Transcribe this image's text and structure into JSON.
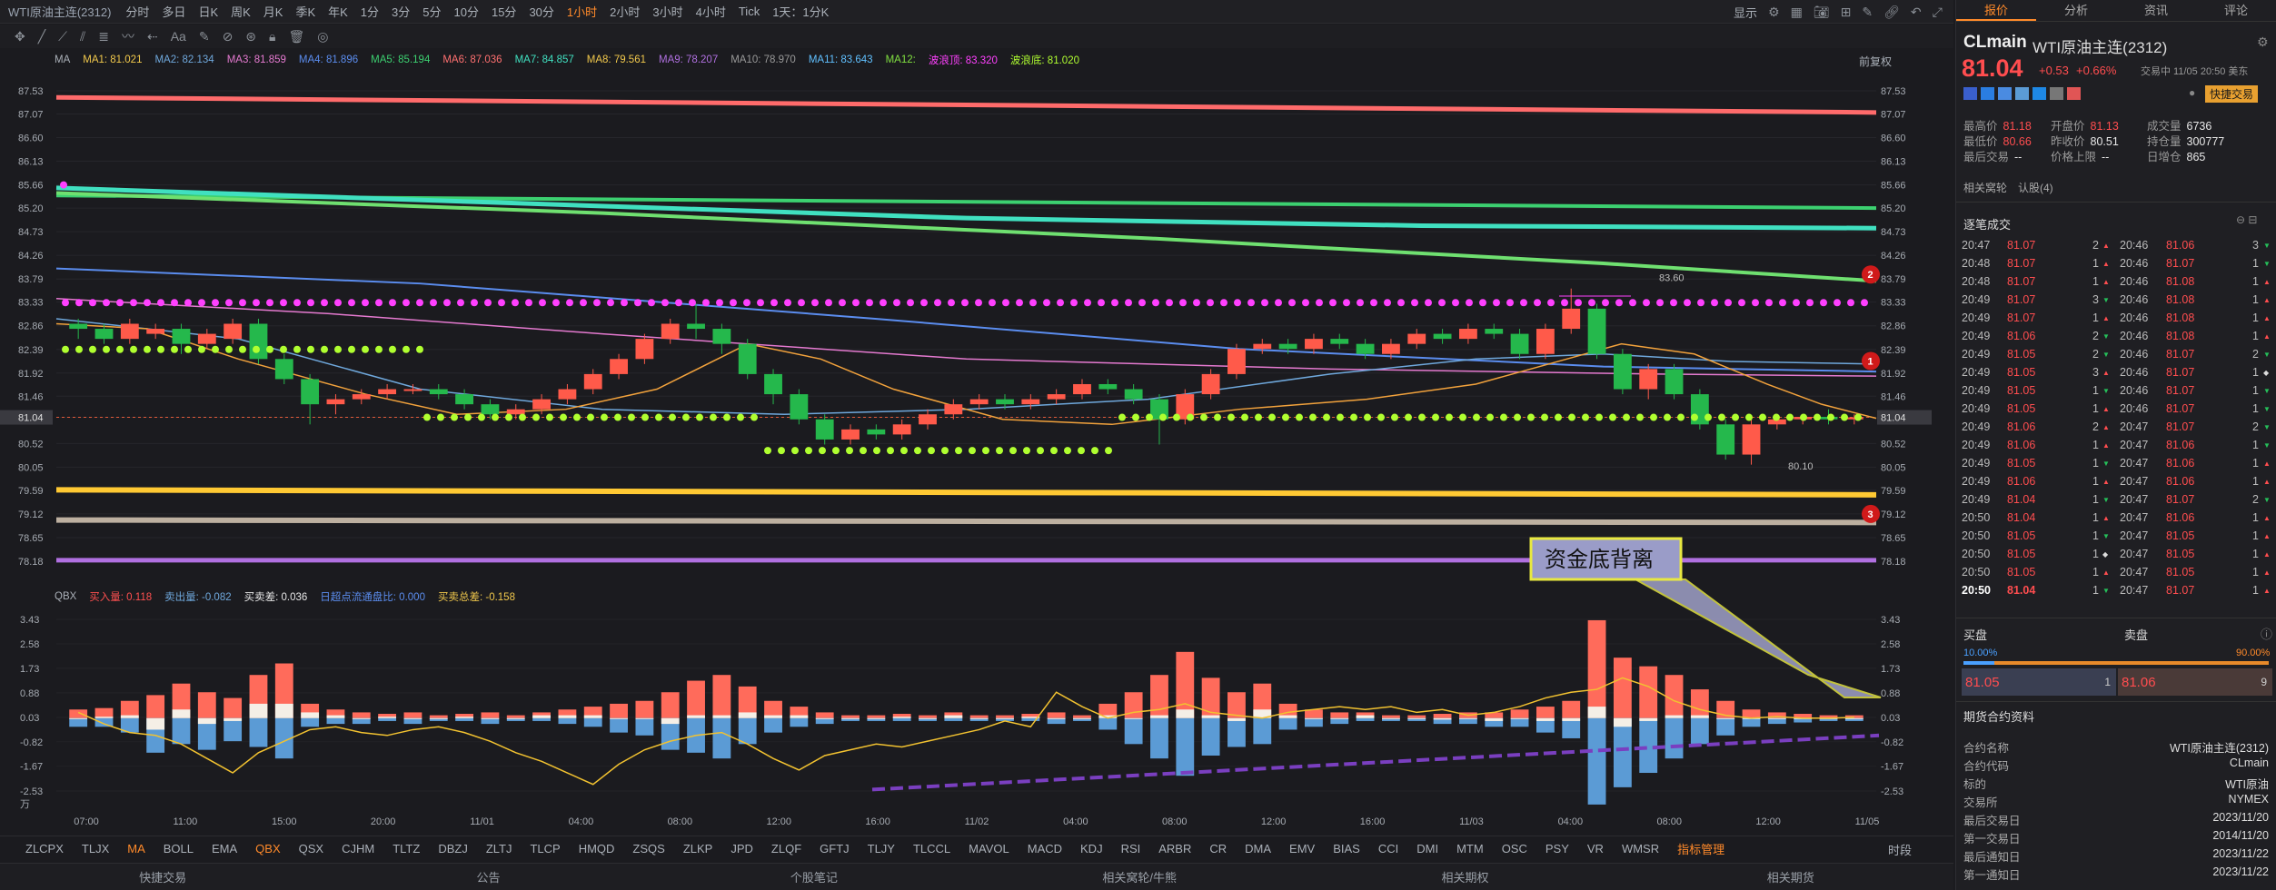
{
  "topbar": {
    "title": "WTI原油主连(2312)",
    "periods": [
      "分时",
      "多日",
      "日K",
      "周K",
      "月K",
      "季K",
      "年K",
      "1分",
      "3分",
      "5分",
      "10分",
      "15分",
      "30分",
      "1小时",
      "2小时",
      "3小时",
      "4小时",
      "Tick",
      "1天：1分K"
    ],
    "active_period": "1小时",
    "right": "显示"
  },
  "ma_legend": {
    "label": "MA",
    "items": [
      {
        "k": "MA1",
        "v": "81.021",
        "c": "#f2c94c"
      },
      {
        "k": "MA2",
        "v": "82.134",
        "c": "#6fa8dc"
      },
      {
        "k": "MA3",
        "v": "81.859",
        "c": "#e57ad0"
      },
      {
        "k": "MA4",
        "v": "81.896",
        "c": "#5b8def"
      },
      {
        "k": "MA5",
        "v": "85.194",
        "c": "#3cd070"
      },
      {
        "k": "MA6",
        "v": "87.036",
        "c": "#ff7070"
      },
      {
        "k": "MA7",
        "v": "84.857",
        "c": "#40e0c0"
      },
      {
        "k": "MA8",
        "v": "79.561",
        "c": "#f2c94c"
      },
      {
        "k": "MA9",
        "v": "78.207",
        "c": "#b070e0"
      },
      {
        "k": "MA10",
        "v": "78.970",
        "c": "#999999"
      },
      {
        "k": "MA11",
        "v": "83.643",
        "c": "#60c0ff"
      },
      {
        "k": "MA12",
        "v": "",
        "c": "#80e040"
      },
      {
        "k": "波浪顶",
        "v": "83.320",
        "c": "#ff40ff"
      },
      {
        "k": "波浪底",
        "v": "81.020",
        "c": "#b0ff30"
      }
    ],
    "right": "前复权"
  },
  "price_axis": [
    "87.53",
    "87.07",
    "86.60",
    "86.13",
    "85.66",
    "85.20",
    "84.73",
    "84.26",
    "83.79",
    "83.33",
    "82.86",
    "82.39",
    "81.92",
    "81.46",
    "81.04",
    "80.52",
    "80.05",
    "79.59",
    "79.12",
    "78.65",
    "78.18"
  ],
  "price_tag": "81.04",
  "annotations": {
    "high": "83.60",
    "low": "80.10",
    "callout": "资金底背离",
    "m1": "1",
    "m2": "2",
    "m3": "3"
  },
  "qbx_legend": {
    "label": "QBX",
    "items": [
      {
        "k": "买入量",
        "v": "0.118",
        "c": "#ff5050"
      },
      {
        "k": "卖出量",
        "v": "-0.082",
        "c": "#6fa8dc"
      },
      {
        "k": "买卖差",
        "v": "0.036",
        "c": "#e8e8e8"
      },
      {
        "k": "日超点流通盘比",
        "v": "0.000",
        "c": "#5b8def"
      },
      {
        "k": "买卖总差",
        "v": "-0.158",
        "c": "#f2c94c"
      }
    ]
  },
  "sub_axis": [
    "3.43",
    "2.58",
    "1.73",
    "0.88",
    "0.03",
    "-0.82",
    "-1.67",
    "-2.53",
    "万"
  ],
  "time_axis": [
    "07:00",
    "11:00",
    "15:00",
    "20:00",
    "11/01",
    "04:00",
    "08:00",
    "12:00",
    "16:00",
    "11/02",
    "04:00",
    "08:00",
    "12:00",
    "16:00",
    "11/03",
    "04:00",
    "08:00",
    "12:00",
    "11/05"
  ],
  "indicators": [
    "ZLCPX",
    "TLJX",
    "MA",
    "BOLL",
    "EMA",
    "QBX",
    "QSX",
    "CJHM",
    "TLTZ",
    "DBZJ",
    "ZLTJ",
    "TLCP",
    "HMQD",
    "ZSQS",
    "ZLKP",
    "JPD",
    "ZLQF",
    "GFTJ",
    "TLJY",
    "TLCCL",
    "MAVOL",
    "MACD",
    "KDJ",
    "RSI",
    "ARBR",
    "CR",
    "DMA",
    "EMV",
    "BIAS",
    "CCI",
    "DMI",
    "MTM",
    "OSC",
    "PSY",
    "VR",
    "WMSR",
    "指标管理"
  ],
  "indicators_active": [
    "MA",
    "QBX"
  ],
  "indicator_right": "时段",
  "footer": [
    "快捷交易",
    "公告",
    "个股笔记",
    "相关窝轮/牛熊",
    "相关期权",
    "相关期货"
  ],
  "panel": {
    "tabs": [
      "报价",
      "分析",
      "资讯",
      "评论"
    ],
    "code": "CLmain",
    "name": "WTI原油主连(2312)",
    "price": "81.04",
    "change": "+0.53",
    "pct": "+0.66%",
    "trade_time": "交易中 11/05 20:50 美东",
    "quick": "快捷交易",
    "stats": [
      {
        "k": "最高价",
        "v": "81.18",
        "c": "red"
      },
      {
        "k": "开盘价",
        "v": "81.13",
        "c": "red"
      },
      {
        "k": "成交量",
        "v": "6736",
        "c": "white"
      },
      {
        "k": "最低价",
        "v": "80.66",
        "c": "red"
      },
      {
        "k": "昨收价",
        "v": "80.51",
        "c": "white"
      },
      {
        "k": "持仓量",
        "v": "300777",
        "c": "white"
      },
      {
        "k": "最后交易",
        "v": "--",
        "c": "white"
      },
      {
        "k": "价格上限",
        "v": "--",
        "c": "white"
      },
      {
        "k": "日增仓",
        "v": "865",
        "c": "white"
      }
    ],
    "links": [
      "相关窝轮",
      "认股(4)"
    ],
    "ticks_title": "逐笔成交",
    "ticks": [
      [
        "20:47",
        "81.07",
        "2",
        "r",
        "20:46",
        "81.06",
        "3",
        "g"
      ],
      [
        "20:48",
        "81.07",
        "1",
        "r",
        "20:46",
        "81.07",
        "1",
        "g"
      ],
      [
        "20:48",
        "81.07",
        "1",
        "r",
        "20:46",
        "81.08",
        "1",
        "r"
      ],
      [
        "20:49",
        "81.07",
        "3",
        "g",
        "20:46",
        "81.08",
        "1",
        "r"
      ],
      [
        "20:49",
        "81.07",
        "1",
        "r",
        "20:46",
        "81.08",
        "1",
        "r"
      ],
      [
        "20:49",
        "81.06",
        "2",
        "g",
        "20:46",
        "81.08",
        "1",
        "r"
      ],
      [
        "20:49",
        "81.05",
        "2",
        "g",
        "20:46",
        "81.07",
        "2",
        "g"
      ],
      [
        "20:49",
        "81.05",
        "3",
        "r",
        "20:46",
        "81.07",
        "1",
        "w"
      ],
      [
        "20:49",
        "81.05",
        "1",
        "g",
        "20:46",
        "81.07",
        "1",
        "g"
      ],
      [
        "20:49",
        "81.05",
        "1",
        "r",
        "20:46",
        "81.07",
        "1",
        "g"
      ],
      [
        "20:49",
        "81.06",
        "2",
        "r",
        "20:47",
        "81.07",
        "2",
        "g"
      ],
      [
        "20:49",
        "81.06",
        "1",
        "r",
        "20:47",
        "81.06",
        "1",
        "g"
      ],
      [
        "20:49",
        "81.05",
        "1",
        "g",
        "20:47",
        "81.06",
        "1",
        "r"
      ],
      [
        "20:49",
        "81.06",
        "1",
        "r",
        "20:47",
        "81.06",
        "1",
        "r"
      ],
      [
        "20:49",
        "81.04",
        "1",
        "g",
        "20:47",
        "81.07",
        "2",
        "g"
      ],
      [
        "20:50",
        "81.04",
        "1",
        "r",
        "20:47",
        "81.06",
        "1",
        "r"
      ],
      [
        "20:50",
        "81.05",
        "1",
        "g",
        "20:47",
        "81.05",
        "1",
        "r"
      ],
      [
        "20:50",
        "81.05",
        "1",
        "w",
        "20:47",
        "81.05",
        "1",
        "r"
      ],
      [
        "20:50",
        "81.05",
        "1",
        "r",
        "20:47",
        "81.05",
        "1",
        "r"
      ],
      [
        "20:50",
        "81.04",
        "1",
        "g",
        "20:47",
        "81.07",
        "1",
        "r"
      ]
    ],
    "bid_label": "买盘",
    "ask_label": "卖盘",
    "bid_pct": "10.00%",
    "ask_pct": "90.00%",
    "bid_price": "81.05",
    "bid_qty": "1",
    "ask_price": "81.06",
    "ask_qty": "9",
    "contract_title": "期货合约资料",
    "contract": [
      {
        "k": "合约名称",
        "v": "WTI原油主连(2312)"
      },
      {
        "k": "合约代码",
        "v": "CLmain"
      },
      {
        "k": "标的",
        "v": "WTI原油"
      },
      {
        "k": "交易所",
        "v": "NYMEX"
      },
      {
        "k": "最后交易日",
        "v": "2023/11/20"
      },
      {
        "k": "第一交易日",
        "v": "2014/11/20"
      },
      {
        "k": "最后通知日",
        "v": "2023/11/22"
      },
      {
        "k": "第一通知日",
        "v": "2023/11/22"
      }
    ]
  }
}
